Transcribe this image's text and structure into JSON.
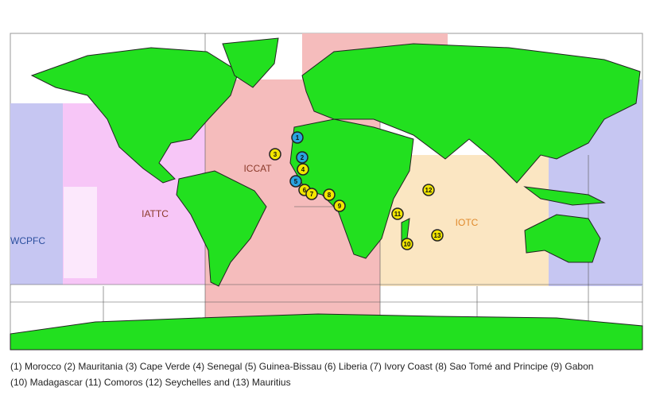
{
  "regions": [
    {
      "label": "ICCAT",
      "color": "#8b3a2a"
    },
    {
      "label": "IATTC",
      "color": "#8b3a2a"
    },
    {
      "label": "WCPFC",
      "color": "#2c4f9e"
    },
    {
      "label": "IOTC",
      "color": "#e08a2c"
    }
  ],
  "markers": [
    {
      "label": "1",
      "color": "#29a3e0"
    },
    {
      "label": "2",
      "color": "#29a3e0"
    },
    {
      "label": "3",
      "color": "#f2e600"
    },
    {
      "label": "4",
      "color": "#f2e600"
    },
    {
      "label": "5",
      "color": "#29a3e0"
    },
    {
      "label": "6",
      "color": "#f2e600"
    },
    {
      "label": "7",
      "color": "#f2e600"
    },
    {
      "label": "8",
      "color": "#f2e600"
    },
    {
      "label": "9",
      "color": "#f2e600"
    },
    {
      "label": "10",
      "color": "#f2e600"
    },
    {
      "label": "11",
      "color": "#f2e600"
    },
    {
      "label": "12",
      "color": "#f2e600"
    },
    {
      "label": "13",
      "color": "#f2e600"
    }
  ],
  "caption": {
    "lines": [
      "(1) Morocco (2) Mauritania (3) Cape Verde (4) Senegal (5) Guinea-Bissau (6) Liberia (7) Ivory Coast (8) Sao Tomé and Principe (9) Gabon",
      "(10) Madagascar  (11) Comoros (12) Seychelles and (13) Mauritius"
    ]
  }
}
